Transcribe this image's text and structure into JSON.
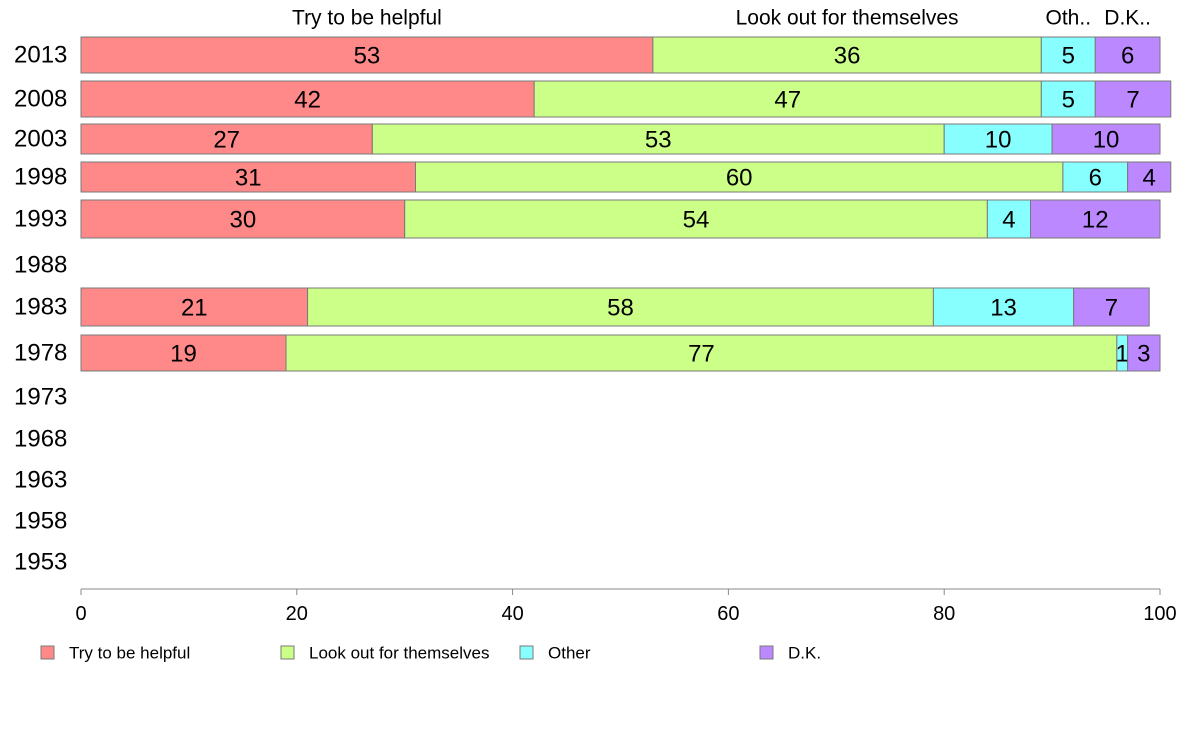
{
  "chart_data": {
    "type": "bar",
    "orientation": "horizontal",
    "stacked": true,
    "categories": [
      "2013",
      "2008",
      "2003",
      "1998",
      "1993",
      "1988",
      "1983",
      "1978",
      "1973",
      "1968",
      "1963",
      "1958",
      "1953"
    ],
    "series": [
      {
        "name": "Try to be helpful",
        "color": "#ff8888",
        "values": [
          53,
          42,
          27,
          31,
          30,
          null,
          21,
          19,
          null,
          null,
          null,
          null,
          null
        ],
        "labels": [
          "53",
          "42",
          "27",
          "31",
          "30",
          "",
          "21",
          "19",
          "",
          "",
          "",
          "",
          ""
        ]
      },
      {
        "name": "Look out for themselves",
        "color": "#ccff88",
        "values": [
          36,
          47,
          53,
          60,
          54,
          null,
          58,
          77,
          null,
          null,
          null,
          null,
          null
        ],
        "labels": [
          "36",
          "47",
          "53",
          "60",
          "54",
          "",
          "58",
          "77",
          "",
          "",
          "",
          "",
          ""
        ]
      },
      {
        "name": "Other",
        "color": "#88ffff",
        "values": [
          5,
          5,
          10,
          6,
          4,
          null,
          13,
          1,
          null,
          null,
          null,
          null,
          null
        ],
        "labels": [
          "5",
          "5",
          "10",
          "6",
          "4",
          "",
          "13",
          "1",
          "",
          "",
          "",
          "",
          ""
        ]
      },
      {
        "name": "D.K.",
        "color": "#bb88ff",
        "values": [
          6,
          7,
          10,
          4,
          12,
          null,
          7,
          3,
          null,
          null,
          null,
          null,
          null
        ],
        "labels": [
          "6",
          "7",
          "10",
          "4",
          "12",
          "",
          "7",
          "3",
          "",
          "",
          "",
          "",
          ""
        ]
      }
    ],
    "column_headers": [
      "Try to be helpful",
      "Look out for themselves",
      "Oth..",
      "D.K.."
    ],
    "xlim": [
      0,
      100
    ],
    "xticks": [
      "0",
      "20",
      "40",
      "60",
      "80",
      "100"
    ],
    "grid": false,
    "legend_position": "bottom"
  }
}
